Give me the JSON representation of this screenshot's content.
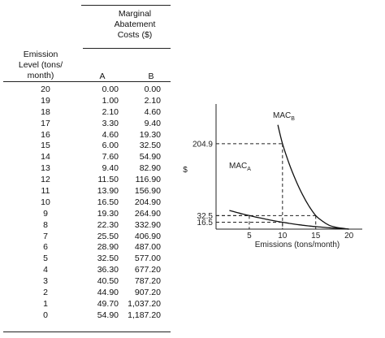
{
  "table": {
    "group_header": [
      "Marginal",
      "Abatement",
      "Costs ($)"
    ],
    "level_header": [
      "Emission",
      "Level (tons/",
      "month)"
    ],
    "col_a": "A",
    "col_b": "B",
    "rows": [
      {
        "level": "20",
        "a": "0.00",
        "b": "0.00"
      },
      {
        "level": "19",
        "a": "1.00",
        "b": "2.10"
      },
      {
        "level": "18",
        "a": "2.10",
        "b": "4.60"
      },
      {
        "level": "17",
        "a": "3.30",
        "b": "9.40"
      },
      {
        "level": "16",
        "a": "4.60",
        "b": "19.30"
      },
      {
        "level": "15",
        "a": "6.00",
        "b": "32.50"
      },
      {
        "level": "14",
        "a": "7.60",
        "b": "54.90"
      },
      {
        "level": "13",
        "a": "9.40",
        "b": "82.90"
      },
      {
        "level": "12",
        "a": "11.50",
        "b": "116.90"
      },
      {
        "level": "11",
        "a": "13.90",
        "b": "156.90"
      },
      {
        "level": "10",
        "a": "16.50",
        "b": "204.90"
      },
      {
        "level": "9",
        "a": "19.30",
        "b": "264.90"
      },
      {
        "level": "8",
        "a": "22.30",
        "b": "332.90"
      },
      {
        "level": "7",
        "a": "25.50",
        "b": "406.90"
      },
      {
        "level": "6",
        "a": "28.90",
        "b": "487.00"
      },
      {
        "level": "5",
        "a": "32.50",
        "b": "577.00"
      },
      {
        "level": "4",
        "a": "36.30",
        "b": "677.20"
      },
      {
        "level": "3",
        "a": "40.50",
        "b": "787.20"
      },
      {
        "level": "2",
        "a": "44.90",
        "b": "907.20"
      },
      {
        "level": "1",
        "a": "49.70",
        "b": "1,037.20"
      },
      {
        "level": "0",
        "a": "54.90",
        "b": "1,187.20"
      }
    ]
  },
  "chart_data": {
    "type": "line",
    "xlabel": "Emissions (tons/month)",
    "ylabel": "$",
    "xlim": [
      0,
      22
    ],
    "ylim": [
      0,
      300
    ],
    "x_ticks": [
      "5",
      "10",
      "15",
      "20"
    ],
    "x_tick_values": [
      5,
      10,
      15,
      20
    ],
    "y_ticks": [
      "204.9",
      "32.5",
      "16.5"
    ],
    "series": [
      {
        "name": "MAC_A",
        "label_main": "MAC",
        "label_sub": "A",
        "x": [
          20,
          19,
          18,
          17,
          16,
          15,
          14,
          13,
          12,
          11,
          10,
          9,
          8,
          7,
          6,
          5,
          4,
          3,
          2
        ],
        "y": [
          0,
          1.0,
          2.1,
          3.3,
          4.6,
          6.0,
          7.6,
          9.4,
          11.5,
          13.9,
          16.5,
          19.3,
          22.3,
          25.5,
          28.9,
          32.5,
          36.3,
          40.5,
          44.9
        ]
      },
      {
        "name": "MAC_B",
        "label_main": "MAC",
        "label_sub": "B",
        "x": [
          20,
          19,
          18,
          17,
          16,
          15,
          14,
          13,
          12,
          11,
          10,
          9.3
        ],
        "y": [
          0,
          2.1,
          4.6,
          9.4,
          19.3,
          32.5,
          54.9,
          82.9,
          116.9,
          156.9,
          204.9,
          250
        ]
      }
    ],
    "guides": [
      {
        "x": 10,
        "y": 204.9
      },
      {
        "x": 5,
        "y": 32.5
      },
      {
        "x": 15,
        "y": 32.5
      },
      {
        "x": 10,
        "y": 16.5
      }
    ]
  }
}
